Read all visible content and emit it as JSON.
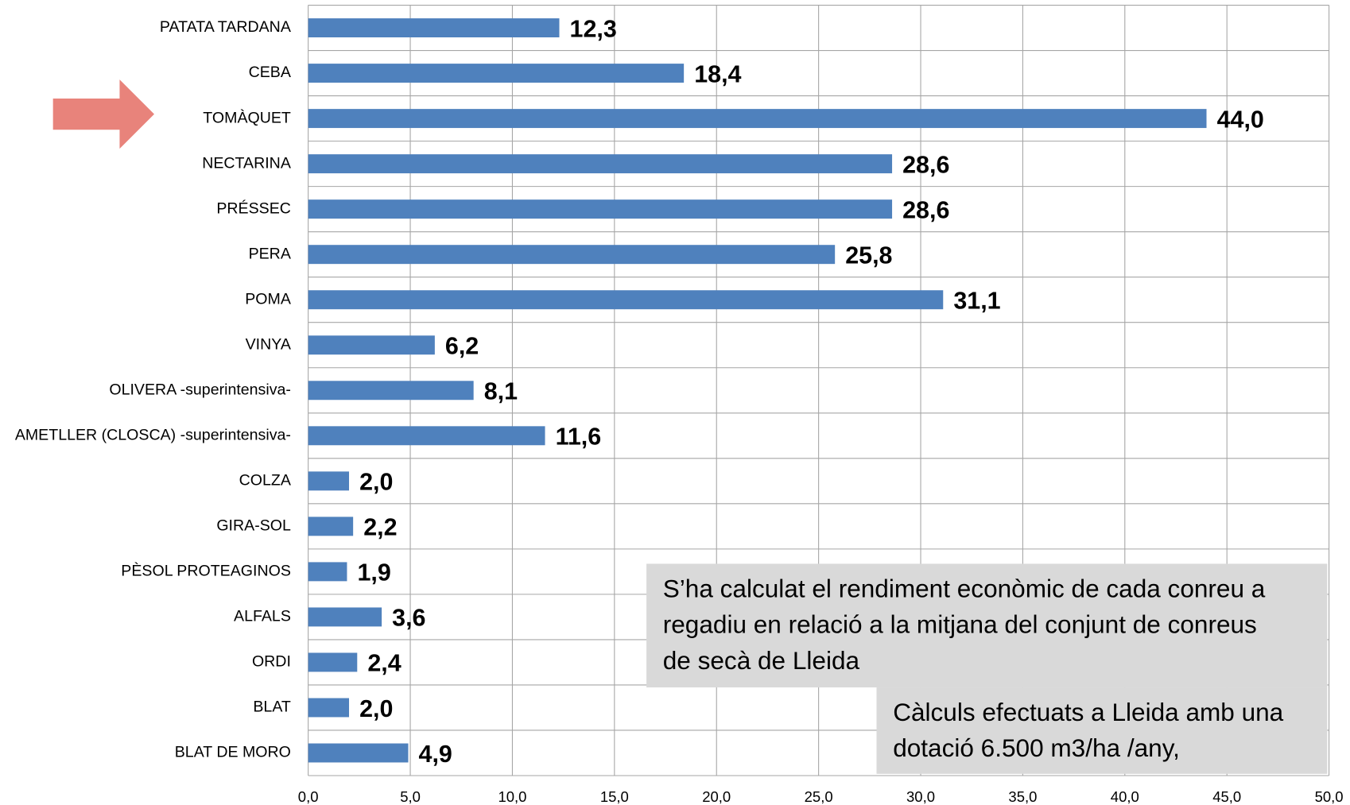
{
  "chart_data": {
    "type": "barh",
    "categories": [
      "PATATA TARDANA",
      "CEBA",
      "TOMÀQUET",
      "NECTARINA",
      "PRÉSSEC",
      "PERA",
      "POMA",
      "VINYA",
      "OLIVERA -superintensiva-",
      "AMETLLER (CLOSCA) -superintensiva-",
      "COLZA",
      "GIRA-SOL",
      "PÈSOL PROTEAGINOS",
      "ALFALS",
      "ORDI",
      "BLAT",
      "BLAT DE MORO"
    ],
    "values": [
      12.3,
      18.4,
      44.0,
      28.6,
      28.6,
      25.8,
      31.1,
      6.2,
      8.1,
      11.6,
      2.0,
      2.2,
      1.9,
      3.6,
      2.4,
      2.0,
      4.9
    ],
    "value_labels": [
      "12,3",
      "18,4",
      "44,0",
      "28,6",
      "28,6",
      "25,8",
      "31,1",
      "6,2",
      "8,1",
      "11,6",
      "2,0",
      "2,2",
      "1,9",
      "3,6",
      "2,4",
      "2,0",
      "4,9"
    ],
    "color": "#4f81bd",
    "xlim": [
      0,
      50
    ],
    "xticks": [
      {
        "value": 0,
        "label": "0,0"
      },
      {
        "value": 5,
        "label": "5,0"
      },
      {
        "value": 10,
        "label": "10,0"
      },
      {
        "value": 15,
        "label": "15,0"
      },
      {
        "value": 20,
        "label": "20,0"
      },
      {
        "value": 25,
        "label": "25,0"
      },
      {
        "value": 30,
        "label": "30,0"
      },
      {
        "value": 35,
        "label": "35,0"
      },
      {
        "value": 40,
        "label": "40,0"
      },
      {
        "value": 45,
        "label": "45,0"
      },
      {
        "value": 50,
        "label": "50,0"
      }
    ],
    "grid": true,
    "annotations": [
      {
        "lines": [
          "S’ha calculat el rendiment econòmic de cada conreu a",
          "regadiu en relació a la mitjana del conjunt de conreus",
          "de secà de Lleida"
        ]
      },
      {
        "lines": [
          "Càlculs efectuats a Lleida amb una",
          "dotació 6.500 m3/ha /any,"
        ]
      }
    ]
  }
}
